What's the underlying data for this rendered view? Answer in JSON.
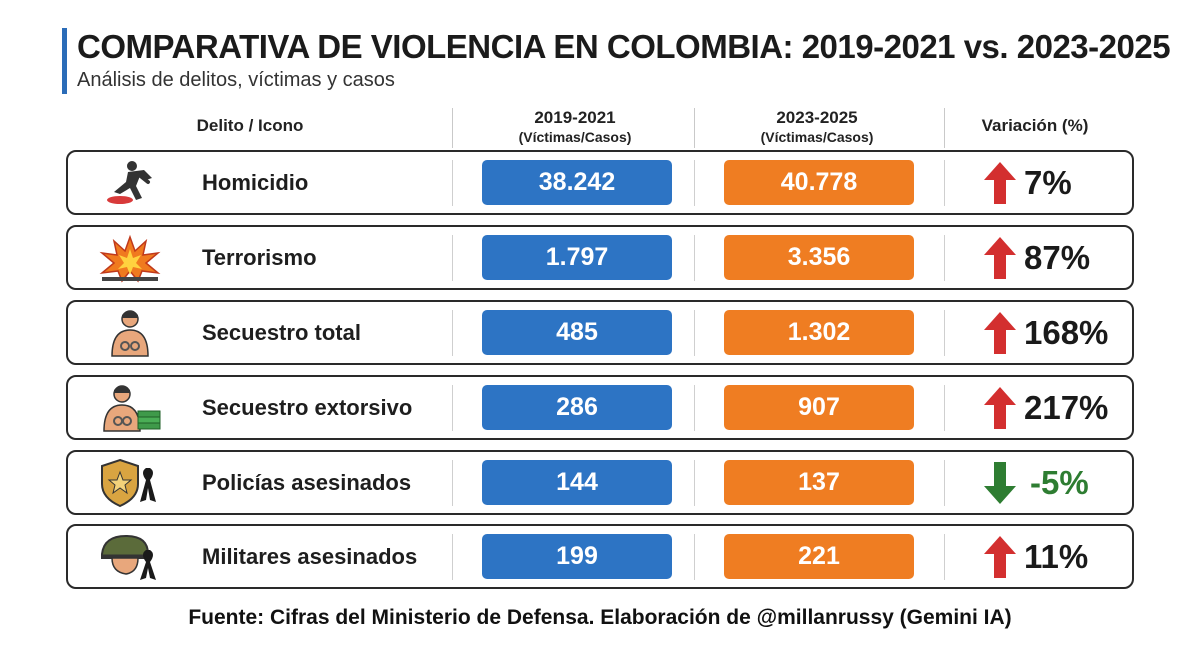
{
  "colors": {
    "accent": "#2b6cb8",
    "period1": "#2d74c4",
    "period2": "#ef7d22",
    "up": "#d32f2f",
    "down": "#2e7d32"
  },
  "chart_data": {
    "type": "table",
    "title": "COMPARATIVA DE VIOLENCIA EN COLOMBIA: 2019-2021 vs. 2023-2025",
    "subtitle": "Análisis de delitos, víctimas y casos",
    "columns": [
      {
        "line1": "Delito / Icono",
        "line2": ""
      },
      {
        "line1": "2019-2021",
        "line2": "(Víctimas/Casos)"
      },
      {
        "line1": "2023-2025",
        "line2": "(Víctimas/Casos)"
      },
      {
        "line1": "Variación (%)",
        "line2": ""
      }
    ],
    "rows": [
      {
        "icon": "homicide-icon",
        "label": "Homicidio",
        "v2019_2021": "38.242",
        "v2023_2025": "40.778",
        "variation": "7%",
        "trend": "up"
      },
      {
        "icon": "explosion-icon",
        "label": "Terrorismo",
        "v2019_2021": "1.797",
        "v2023_2025": "3.356",
        "variation": "87%",
        "trend": "up"
      },
      {
        "icon": "kidnapping-icon",
        "label": "Secuestro total",
        "v2019_2021": "485",
        "v2023_2025": "1.302",
        "variation": "168%",
        "trend": "up"
      },
      {
        "icon": "extortion-kidnapping-icon",
        "label": "Secuestro extorsivo",
        "v2019_2021": "286",
        "v2023_2025": "907",
        "variation": "217%",
        "trend": "up"
      },
      {
        "icon": "police-badge-icon",
        "label": "Policías asesinados",
        "v2019_2021": "144",
        "v2023_2025": "137",
        "variation": "-5%",
        "trend": "down"
      },
      {
        "icon": "military-helmet-icon",
        "label": "Militares asesinados",
        "v2019_2021": "199",
        "v2023_2025": "221",
        "variation": "11%",
        "trend": "up"
      }
    ],
    "source": "Fuente: Cifras del Ministerio de Defensa. Elaboración de @millanrussy (Gemini IA)"
  }
}
